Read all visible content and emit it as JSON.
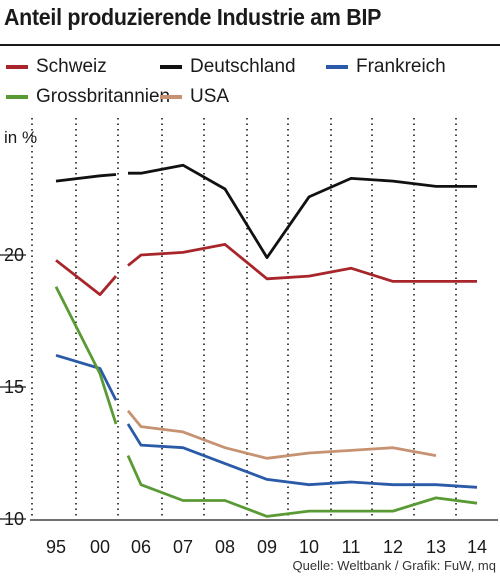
{
  "chart_data": {
    "type": "line",
    "title": "Anteil produzierende Industrie am BIP",
    "ylabel": "in %",
    "ylim": [
      10,
      25
    ],
    "y_ticks": [
      10,
      15,
      20
    ],
    "categories": [
      "95",
      "00",
      "06",
      "07",
      "08",
      "09",
      "10",
      "11",
      "12",
      "13",
      "14"
    ],
    "legend_placement": "top",
    "grid": "dotted vertical",
    "series": [
      {
        "name": "Schweiz",
        "color": "#a8262b",
        "segments": [
          [
            {
              "x": "95",
              "y": 19.8
            },
            {
              "x": "00",
              "y": 18.5
            },
            {
              "x": "00b",
              "y": 19.2
            }
          ],
          [
            {
              "x": "05",
              "y": 19.6
            },
            {
              "x": "06",
              "y": 20.0
            },
            {
              "x": "07",
              "y": 20.1
            },
            {
              "x": "08",
              "y": 20.4
            },
            {
              "x": "09",
              "y": 19.1
            },
            {
              "x": "10",
              "y": 19.2
            },
            {
              "x": "11",
              "y": 19.5
            },
            {
              "x": "12",
              "y": 19.0
            },
            {
              "x": "13",
              "y": 19.0
            },
            {
              "x": "14",
              "y": 19.0
            }
          ]
        ]
      },
      {
        "name": "Deutschland",
        "color": "#111111",
        "segments": [
          [
            {
              "x": "95",
              "y": 22.8
            },
            {
              "x": "00",
              "y": 23.0
            },
            {
              "x": "00b",
              "y": 23.05
            }
          ],
          [
            {
              "x": "05",
              "y": 23.1
            },
            {
              "x": "06",
              "y": 23.1
            },
            {
              "x": "07",
              "y": 23.4
            },
            {
              "x": "08",
              "y": 22.5
            },
            {
              "x": "09",
              "y": 19.9
            },
            {
              "x": "10",
              "y": 22.2
            },
            {
              "x": "11",
              "y": 22.9
            },
            {
              "x": "12",
              "y": 22.8
            },
            {
              "x": "13",
              "y": 22.6
            },
            {
              "x": "14",
              "y": 22.6
            }
          ]
        ]
      },
      {
        "name": "Frankreich",
        "color": "#2a5aa8",
        "segments": [
          [
            {
              "x": "95",
              "y": 16.2
            },
            {
              "x": "00",
              "y": 15.7
            },
            {
              "x": "00b",
              "y": 14.5
            }
          ],
          [
            {
              "x": "05",
              "y": 13.6
            },
            {
              "x": "06",
              "y": 12.8
            },
            {
              "x": "07",
              "y": 12.7
            },
            {
              "x": "08",
              "y": 12.1
            },
            {
              "x": "09",
              "y": 11.5
            },
            {
              "x": "10",
              "y": 11.3
            },
            {
              "x": "11",
              "y": 11.4
            },
            {
              "x": "12",
              "y": 11.3
            },
            {
              "x": "13",
              "y": 11.3
            },
            {
              "x": "14",
              "y": 11.2
            }
          ]
        ]
      },
      {
        "name": "Grossbritannien",
        "color": "#5a9a35",
        "segments": [
          [
            {
              "x": "95",
              "y": 18.8
            },
            {
              "x": "00",
              "y": 15.5
            },
            {
              "x": "00b",
              "y": 13.6
            }
          ],
          [
            {
              "x": "05",
              "y": 12.4
            },
            {
              "x": "06",
              "y": 11.3
            },
            {
              "x": "07",
              "y": 10.7
            },
            {
              "x": "08",
              "y": 10.7
            },
            {
              "x": "09",
              "y": 10.1
            },
            {
              "x": "10",
              "y": 10.3
            },
            {
              "x": "11",
              "y": 10.3
            },
            {
              "x": "12",
              "y": 10.3
            },
            {
              "x": "13",
              "y": 10.8
            },
            {
              "x": "14",
              "y": 10.6
            }
          ]
        ]
      },
      {
        "name": "USA",
        "color": "#c69272",
        "segments": [
          [
            {
              "x": "05",
              "y": 14.1
            },
            {
              "x": "06",
              "y": 13.5
            },
            {
              "x": "07",
              "y": 13.3
            },
            {
              "x": "08",
              "y": 12.7
            },
            {
              "x": "09",
              "y": 12.3
            },
            {
              "x": "10",
              "y": 12.5
            },
            {
              "x": "11",
              "y": 12.6
            },
            {
              "x": "12",
              "y": 12.7
            },
            {
              "x": "13",
              "y": 12.4
            }
          ]
        ]
      }
    ],
    "source": "Quelle: Weltbank / Grafik: FuW, mq"
  }
}
